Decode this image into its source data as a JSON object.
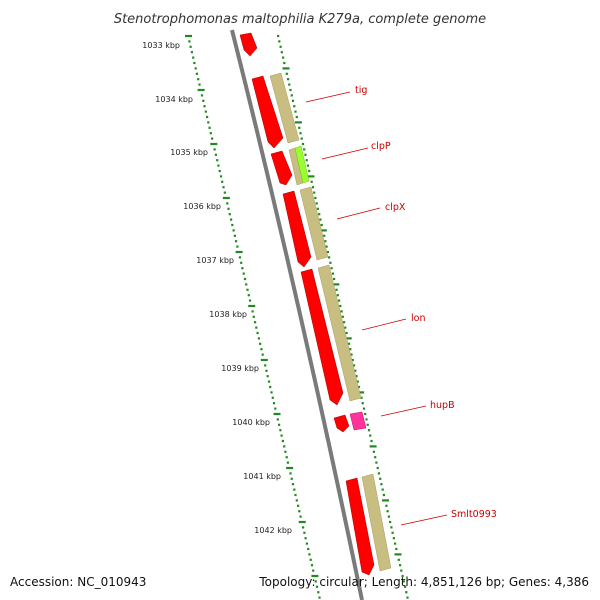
{
  "title": "Stenotrophomonas maltophilia K279a, complete genome",
  "accession_text": "Accession: NC_010943",
  "summary_text": "Topology: circular; Length: 4,851,126 bp; Genes: 4,386",
  "ticks": [
    {
      "label": "1033 kbp"
    },
    {
      "label": "1034 kbp"
    },
    {
      "label": "1035 kbp"
    },
    {
      "label": "1036 kbp"
    },
    {
      "label": "1037 kbp"
    },
    {
      "label": "1038 kbp"
    },
    {
      "label": "1039 kbp"
    },
    {
      "label": "1040 kbp"
    },
    {
      "label": "1041 kbp"
    },
    {
      "label": "1042 kbp"
    }
  ],
  "genes": [
    {
      "label": ""
    },
    {
      "label": "tig"
    },
    {
      "label": "clpP"
    },
    {
      "label": "clpX"
    },
    {
      "label": "lon"
    },
    {
      "label": "hupB"
    },
    {
      "label": "Smlt0993"
    }
  ],
  "colors": {
    "cds": "#ff0000",
    "cog_tan": "#c8be82",
    "cog_green": "#99ff33",
    "cog_pink": "#ff3399",
    "backbone": "#7a7a7a",
    "tick": "#228822",
    "label": "#cc0000"
  }
}
